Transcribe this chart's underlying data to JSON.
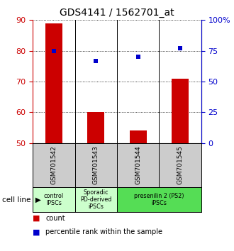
{
  "title": "GDS4141 / 1562701_at",
  "samples": [
    "GSM701542",
    "GSM701543",
    "GSM701544",
    "GSM701545"
  ],
  "count_values": [
    89,
    60,
    54,
    71
  ],
  "percentile_values": [
    75,
    67,
    70,
    77
  ],
  "ylim_left": [
    50,
    90
  ],
  "ylim_right": [
    0,
    100
  ],
  "left_ticks": [
    50,
    60,
    70,
    80,
    90
  ],
  "right_ticks": [
    0,
    25,
    50,
    75,
    100
  ],
  "right_tick_labels": [
    "0",
    "25",
    "50",
    "75",
    "100%"
  ],
  "bar_color": "#cc0000",
  "marker_color": "#0000cc",
  "sample_box_color": "#cccccc",
  "group_info": [
    {
      "label": "control\nIPSCs",
      "cols": [
        0
      ],
      "color": "#ccffcc"
    },
    {
      "label": "Sporadic\nPD-derived\niPSCs",
      "cols": [
        1
      ],
      "color": "#ccffcc"
    },
    {
      "label": "presenilin 2 (PS2)\niPSCs",
      "cols": [
        2,
        3
      ],
      "color": "#55dd55"
    }
  ],
  "bar_width": 0.4,
  "cell_line_label": "cell line"
}
